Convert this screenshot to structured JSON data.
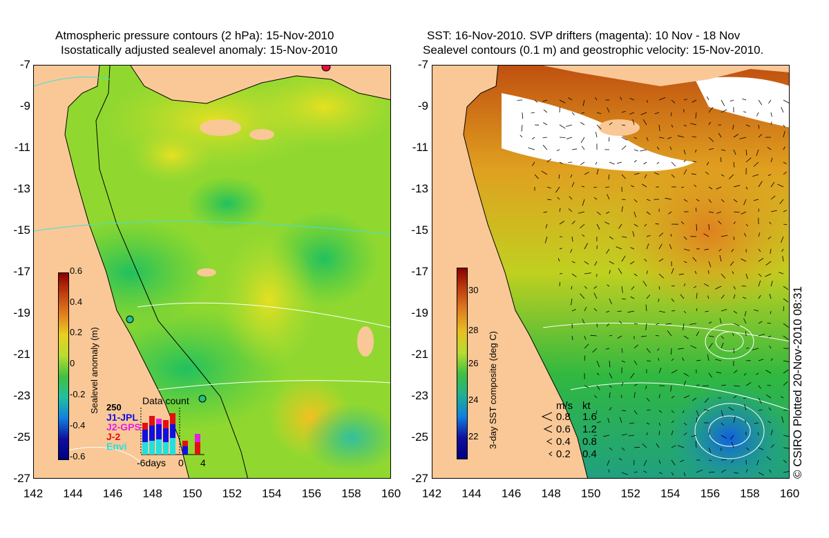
{
  "left": {
    "title_line1": "Atmospheric pressure contours (2 hPa): 15-Nov-2010",
    "title_line2": "Isostatically adjusted sealevel anomaly: 15-Nov-2010",
    "colorbar_label": "Sealevel anomaly (m)",
    "colorbar_ticks": [
      "0.6",
      "0.4",
      "0.2",
      "0",
      "-0.2",
      "-0.4",
      "-0.6"
    ],
    "data_count": {
      "title": "Data count",
      "max_label": "250",
      "missions": [
        {
          "name": "J1-JPL",
          "color": "#1010e0"
        },
        {
          "name": "J2-GPS",
          "color": "#e020e0"
        },
        {
          "name": "J-2",
          "color": "#e01010"
        },
        {
          "name": "Envi",
          "color": "#20e0e0"
        }
      ],
      "axis_left": "-6days",
      "axis_mid": "0",
      "axis_right": "4"
    }
  },
  "right": {
    "title_line1": "SST: 16-Nov-2010. SVP drifters (magenta): 10 Nov - 18 Nov",
    "title_line2": "Sealevel contours (0.1 m) and geostrophic velocity: 15-Nov-2010.",
    "colorbar_label": "3-day SST composite (deg C)",
    "colorbar_ticks": [
      "30",
      "28",
      "26",
      "24",
      "22"
    ],
    "velocity_legend": {
      "header_ms": "m/s",
      "header_kt": "kt",
      "rows": [
        {
          "ms": "0.8",
          "kt": "1.6"
        },
        {
          "ms": "0.6",
          "kt": "1.2"
        },
        {
          "ms": "0.4",
          "kt": "0.8"
        },
        {
          "ms": "0.2",
          "kt": "0.4"
        }
      ]
    }
  },
  "axes": {
    "y_ticks": [
      "-7",
      "-9",
      "-11",
      "-13",
      "-15",
      "-17",
      "-19",
      "-21",
      "-23",
      "-25",
      "-27"
    ],
    "x_ticks": [
      "142",
      "144",
      "146",
      "148",
      "150",
      "152",
      "154",
      "156",
      "158",
      "160"
    ]
  },
  "copyright": "© CSIRO Plotted 20-Nov-2010 08:31",
  "colors": {
    "land": "#f9c896",
    "cloud": "#ffffff"
  }
}
